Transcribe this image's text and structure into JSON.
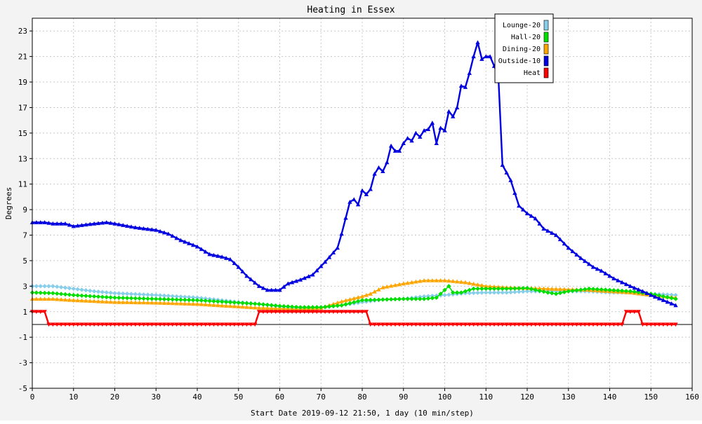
{
  "chart_data": {
    "type": "line",
    "title": "Heating in Essex",
    "xlabel": "Start Date 2019-09-12 21:50, 1 day (10 min/step)",
    "ylabel": "Degrees",
    "xlim": [
      0,
      160
    ],
    "ylim": [
      -5,
      24
    ],
    "x_ticks": [
      0,
      10,
      20,
      30,
      40,
      50,
      60,
      70,
      80,
      90,
      100,
      110,
      120,
      130,
      140,
      150,
      160
    ],
    "y_ticks": [
      -5,
      -3,
      -1,
      1,
      3,
      5,
      7,
      9,
      11,
      13,
      15,
      17,
      19,
      21,
      23
    ],
    "grid": true,
    "legend_position": "top-right",
    "series": [
      {
        "name": "Lounge-20",
        "color": "#87ceeb",
        "marker": "diamond",
        "points": [
          [
            0,
            3.0
          ],
          [
            5,
            3.0
          ],
          [
            10,
            2.8
          ],
          [
            15,
            2.6
          ],
          [
            20,
            2.45
          ],
          [
            30,
            2.3
          ],
          [
            40,
            2.1
          ],
          [
            50,
            1.75
          ],
          [
            55,
            1.6
          ],
          [
            60,
            1.4
          ],
          [
            65,
            1.3
          ],
          [
            70,
            1.3
          ],
          [
            75,
            1.5
          ],
          [
            80,
            1.75
          ],
          [
            85,
            1.95
          ],
          [
            90,
            2.0
          ],
          [
            95,
            2.2
          ],
          [
            100,
            2.3
          ],
          [
            105,
            2.45
          ],
          [
            110,
            2.5
          ],
          [
            115,
            2.5
          ],
          [
            120,
            2.6
          ],
          [
            125,
            2.6
          ],
          [
            130,
            2.6
          ],
          [
            135,
            2.6
          ],
          [
            140,
            2.5
          ],
          [
            145,
            2.5
          ],
          [
            150,
            2.4
          ],
          [
            156,
            2.3
          ]
        ]
      },
      {
        "name": "Hall-20",
        "color": "#00e000",
        "marker": "diamond",
        "points": [
          [
            0,
            2.5
          ],
          [
            5,
            2.45
          ],
          [
            10,
            2.3
          ],
          [
            15,
            2.2
          ],
          [
            20,
            2.1
          ],
          [
            30,
            2.0
          ],
          [
            40,
            1.9
          ],
          [
            45,
            1.8
          ],
          [
            50,
            1.7
          ],
          [
            55,
            1.6
          ],
          [
            60,
            1.45
          ],
          [
            65,
            1.35
          ],
          [
            70,
            1.35
          ],
          [
            75,
            1.5
          ],
          [
            80,
            1.9
          ],
          [
            85,
            1.95
          ],
          [
            90,
            2.0
          ],
          [
            95,
            2.0
          ],
          [
            98,
            2.1
          ],
          [
            100,
            2.7
          ],
          [
            101,
            3.0
          ],
          [
            102,
            2.5
          ],
          [
            104,
            2.5
          ],
          [
            107,
            2.8
          ],
          [
            110,
            2.8
          ],
          [
            115,
            2.8
          ],
          [
            120,
            2.85
          ],
          [
            125,
            2.5
          ],
          [
            127,
            2.4
          ],
          [
            130,
            2.6
          ],
          [
            135,
            2.8
          ],
          [
            140,
            2.7
          ],
          [
            145,
            2.6
          ],
          [
            150,
            2.4
          ],
          [
            156,
            2.0
          ]
        ]
      },
      {
        "name": "Dining-20",
        "color": "#ffa500",
        "marker": "triangle",
        "points": [
          [
            0,
            2.0
          ],
          [
            5,
            2.0
          ],
          [
            10,
            1.9
          ],
          [
            20,
            1.75
          ],
          [
            30,
            1.7
          ],
          [
            40,
            1.6
          ],
          [
            50,
            1.4
          ],
          [
            55,
            1.3
          ],
          [
            60,
            1.25
          ],
          [
            65,
            1.2
          ],
          [
            70,
            1.3
          ],
          [
            75,
            1.8
          ],
          [
            80,
            2.2
          ],
          [
            82,
            2.4
          ],
          [
            85,
            2.9
          ],
          [
            90,
            3.2
          ],
          [
            95,
            3.45
          ],
          [
            100,
            3.45
          ],
          [
            105,
            3.3
          ],
          [
            110,
            3.0
          ],
          [
            115,
            2.9
          ],
          [
            120,
            2.85
          ],
          [
            125,
            2.8
          ],
          [
            130,
            2.75
          ],
          [
            135,
            2.7
          ],
          [
            140,
            2.6
          ],
          [
            145,
            2.5
          ],
          [
            150,
            2.3
          ],
          [
            156,
            2.1
          ]
        ]
      },
      {
        "name": "Outside-10",
        "color": "#0000e0",
        "marker": "triangle",
        "points": [
          [
            0,
            8.0
          ],
          [
            3,
            8.0
          ],
          [
            5,
            7.9
          ],
          [
            8,
            7.9
          ],
          [
            10,
            7.7
          ],
          [
            15,
            7.9
          ],
          [
            18,
            8.0
          ],
          [
            20,
            7.9
          ],
          [
            25,
            7.6
          ],
          [
            30,
            7.4
          ],
          [
            33,
            7.1
          ],
          [
            36,
            6.6
          ],
          [
            40,
            6.1
          ],
          [
            43,
            5.5
          ],
          [
            46,
            5.3
          ],
          [
            48,
            5.1
          ],
          [
            50,
            4.5
          ],
          [
            52,
            3.8
          ],
          [
            55,
            3.0
          ],
          [
            57,
            2.7
          ],
          [
            60,
            2.7
          ],
          [
            62,
            3.2
          ],
          [
            65,
            3.5
          ],
          [
            68,
            3.9
          ],
          [
            71,
            4.9
          ],
          [
            74,
            6.0
          ],
          [
            75,
            7.1
          ],
          [
            77,
            9.6
          ],
          [
            78,
            9.8
          ],
          [
            79,
            9.4
          ],
          [
            80,
            10.5
          ],
          [
            81,
            10.2
          ],
          [
            82,
            10.6
          ],
          [
            83,
            11.8
          ],
          [
            84,
            12.3
          ],
          [
            85,
            12.0
          ],
          [
            86,
            12.7
          ],
          [
            87,
            14.0
          ],
          [
            88,
            13.6
          ],
          [
            89,
            13.6
          ],
          [
            90,
            14.2
          ],
          [
            91,
            14.6
          ],
          [
            92,
            14.4
          ],
          [
            93,
            15.0
          ],
          [
            94,
            14.7
          ],
          [
            95,
            15.2
          ],
          [
            96,
            15.3
          ],
          [
            97,
            15.8
          ],
          [
            98,
            14.2
          ],
          [
            99,
            15.4
          ],
          [
            100,
            15.2
          ],
          [
            101,
            16.7
          ],
          [
            102,
            16.3
          ],
          [
            103,
            17.0
          ],
          [
            104,
            18.7
          ],
          [
            105,
            18.6
          ],
          [
            106,
            19.7
          ],
          [
            107,
            21.0
          ],
          [
            108,
            22.1
          ],
          [
            109,
            20.8
          ],
          [
            110,
            21.0
          ],
          [
            111,
            21.0
          ],
          [
            113,
            19.5
          ],
          [
            114,
            12.5
          ],
          [
            115,
            11.9
          ],
          [
            116,
            11.3
          ],
          [
            117,
            10.3
          ],
          [
            118,
            9.3
          ],
          [
            120,
            8.7
          ],
          [
            122,
            8.3
          ],
          [
            124,
            7.5
          ],
          [
            127,
            7.0
          ],
          [
            130,
            6.0
          ],
          [
            133,
            5.2
          ],
          [
            136,
            4.5
          ],
          [
            138,
            4.2
          ],
          [
            141,
            3.6
          ],
          [
            143,
            3.3
          ],
          [
            145,
            3.0
          ],
          [
            148,
            2.6
          ],
          [
            150,
            2.3
          ],
          [
            153,
            1.9
          ],
          [
            156,
            1.5
          ]
        ]
      },
      {
        "name": "Heat",
        "color": "#ff0000",
        "marker": "triangle-down",
        "points": [
          [
            0,
            1.0
          ],
          [
            3,
            1.0
          ],
          [
            4,
            0.0
          ],
          [
            54,
            0.0
          ],
          [
            55,
            1.0
          ],
          [
            81,
            1.0
          ],
          [
            82,
            0.0
          ],
          [
            143,
            0.0
          ],
          [
            144,
            1.0
          ],
          [
            147,
            1.0
          ],
          [
            148,
            0.0
          ],
          [
            156,
            0.0
          ]
        ]
      }
    ]
  }
}
